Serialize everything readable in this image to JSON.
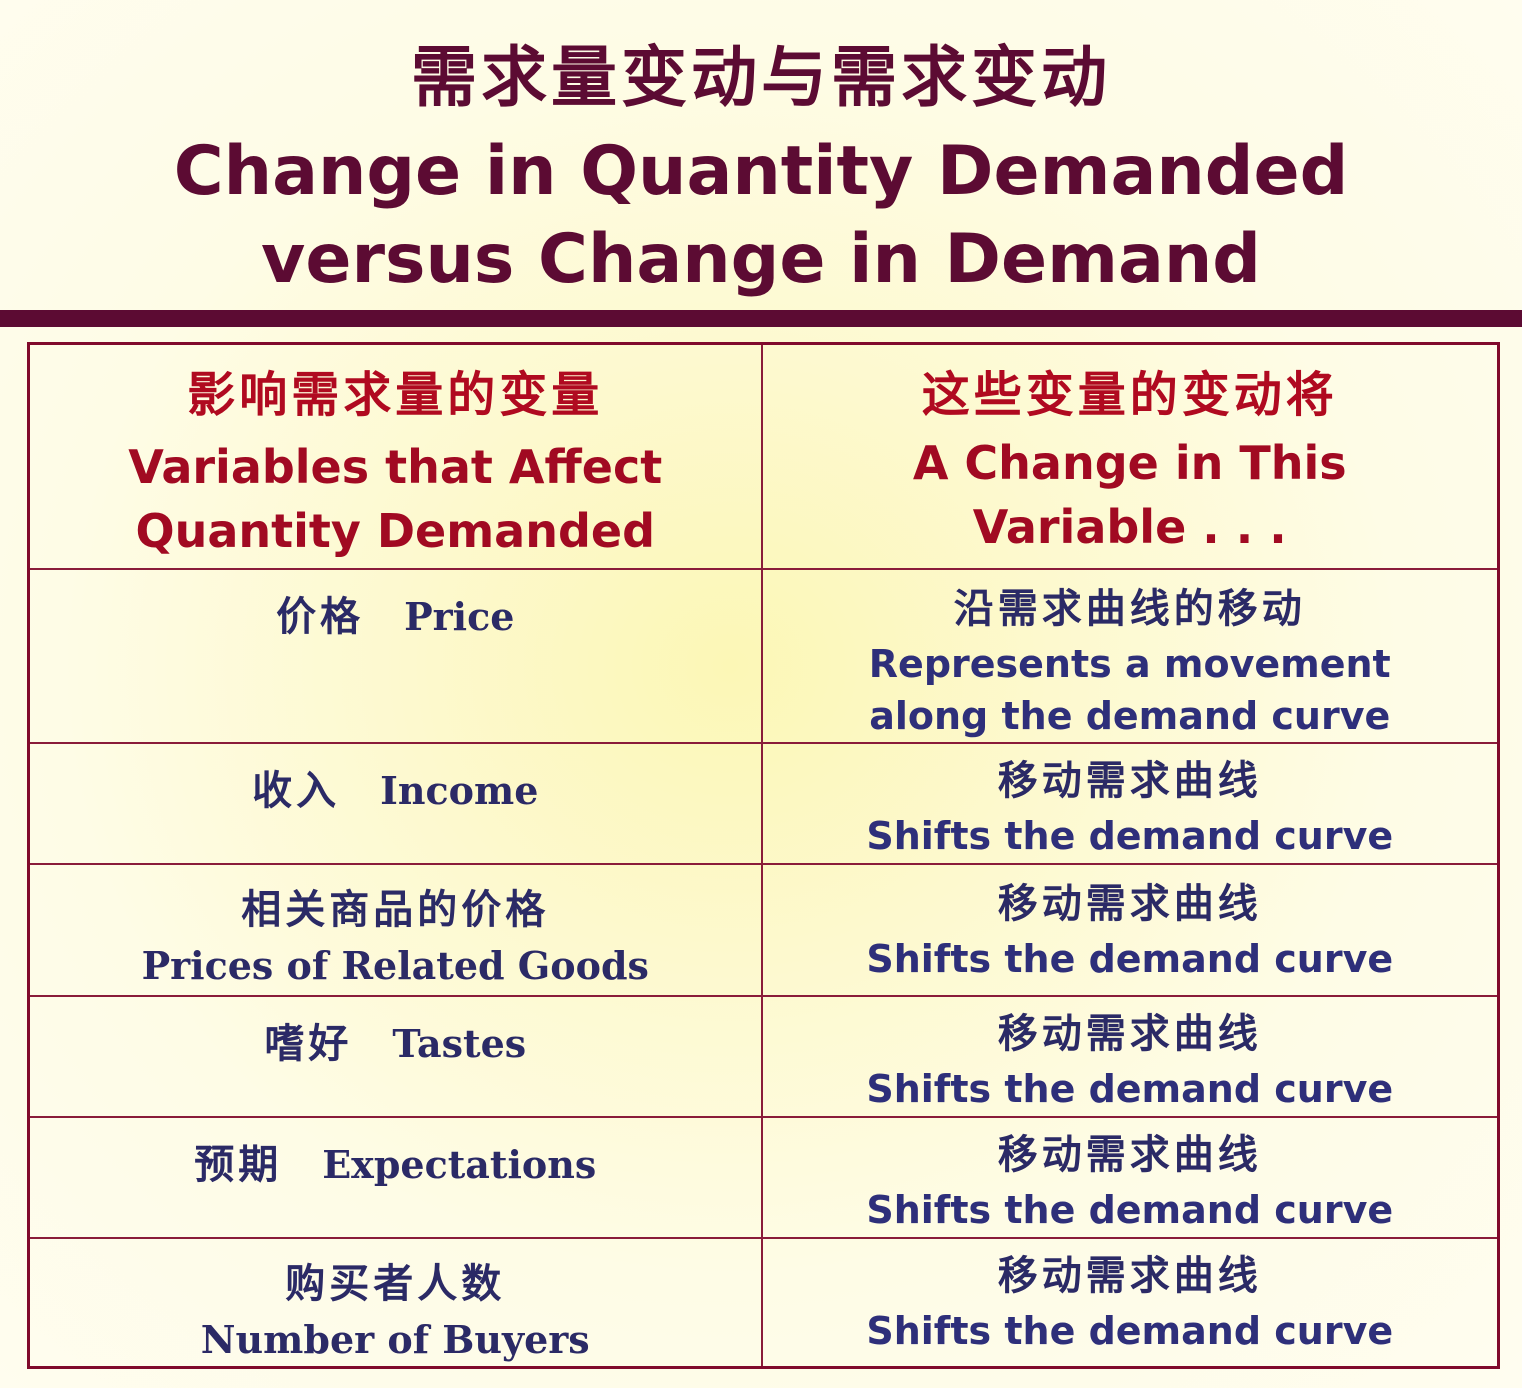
{
  "title": {
    "zh": "需求量变动与需求变动",
    "en_line1": "Change in Quantity Demanded",
    "en_line2": "versus Change in Demand"
  },
  "table": {
    "header": {
      "left_zh": "影响需求量的变量",
      "left_en": "Variables that Affect\nQuantity Demanded",
      "right_zh": "这些变量的变动将",
      "right_en": "A Change in This\nVariable . . ."
    },
    "rows": [
      {
        "var_zh": "价格",
        "var_en": "Price",
        "effect_zh": "沿需求曲线的移动",
        "effect_en": "Represents a movement\nalong the demand curve"
      },
      {
        "var_zh": "收入",
        "var_en": "Income",
        "effect_zh": "移动需求曲线",
        "effect_en": "Shifts the demand curve"
      },
      {
        "var_zh": "相关商品的价格",
        "var_en": "Prices of Related Goods",
        "effect_zh": "移动需求曲线",
        "effect_en": "Shifts the demand curve"
      },
      {
        "var_zh": "嗜好",
        "var_en": "Tastes",
        "effect_zh": "移动需求曲线",
        "effect_en": "Shifts the demand curve"
      },
      {
        "var_zh": "预期",
        "var_en": "Expectations",
        "effect_zh": "移动需求曲线",
        "effect_en": "Shifts the demand curve"
      },
      {
        "var_zh": "购买者人数",
        "var_en": "Number of Buyers",
        "effect_zh": "移动需求曲线",
        "effect_en": "Shifts the demand curve"
      }
    ]
  }
}
